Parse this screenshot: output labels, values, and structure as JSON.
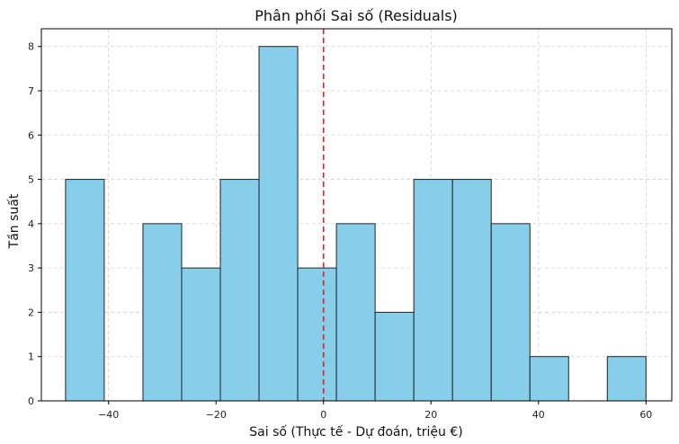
{
  "chart_data": {
    "type": "bar",
    "title": "Phân phối Sai số (Residuals)",
    "xlabel": "Sai số (Thực tế - Dự đoán, triệu €)",
    "ylabel": "Tần suất",
    "xlim": [
      -52.5,
      64.8
    ],
    "ylim": [
      0,
      8.4
    ],
    "xticks": [
      -40,
      -20,
      0,
      20,
      40,
      60
    ],
    "xtick_labels": [
      "−40",
      "−20",
      "0",
      "20",
      "40",
      "60"
    ],
    "yticks": [
      0,
      1,
      2,
      3,
      4,
      5,
      6,
      7,
      8
    ],
    "ytick_labels": [
      "0",
      "1",
      "2",
      "3",
      "4",
      "5",
      "6",
      "7",
      "8"
    ],
    "grid": true,
    "bar_color": "#87CEEB",
    "edge_color": "#222222",
    "reference_line": {
      "x": 0,
      "color": "#d62728",
      "style": "dashed"
    },
    "bins": [
      {
        "x0": -48.0,
        "x1": -40.8,
        "count": 5
      },
      {
        "x0": -40.8,
        "x1": -33.6,
        "count": 0
      },
      {
        "x0": -33.6,
        "x1": -26.4,
        "count": 4
      },
      {
        "x0": -26.4,
        "x1": -19.2,
        "count": 3
      },
      {
        "x0": -19.2,
        "x1": -12.0,
        "count": 5
      },
      {
        "x0": -12.0,
        "x1": -4.8,
        "count": 8
      },
      {
        "x0": -4.8,
        "x1": 2.4,
        "count": 3
      },
      {
        "x0": 2.4,
        "x1": 9.6,
        "count": 4
      },
      {
        "x0": 9.6,
        "x1": 16.8,
        "count": 2
      },
      {
        "x0": 16.8,
        "x1": 24.0,
        "count": 5
      },
      {
        "x0": 24.0,
        "x1": 31.2,
        "count": 5
      },
      {
        "x0": 31.2,
        "x1": 38.4,
        "count": 4
      },
      {
        "x0": 38.4,
        "x1": 45.6,
        "count": 1
      },
      {
        "x0": 45.6,
        "x1": 52.8,
        "count": 0
      },
      {
        "x0": 52.8,
        "x1": 60.0,
        "count": 1
      }
    ]
  }
}
